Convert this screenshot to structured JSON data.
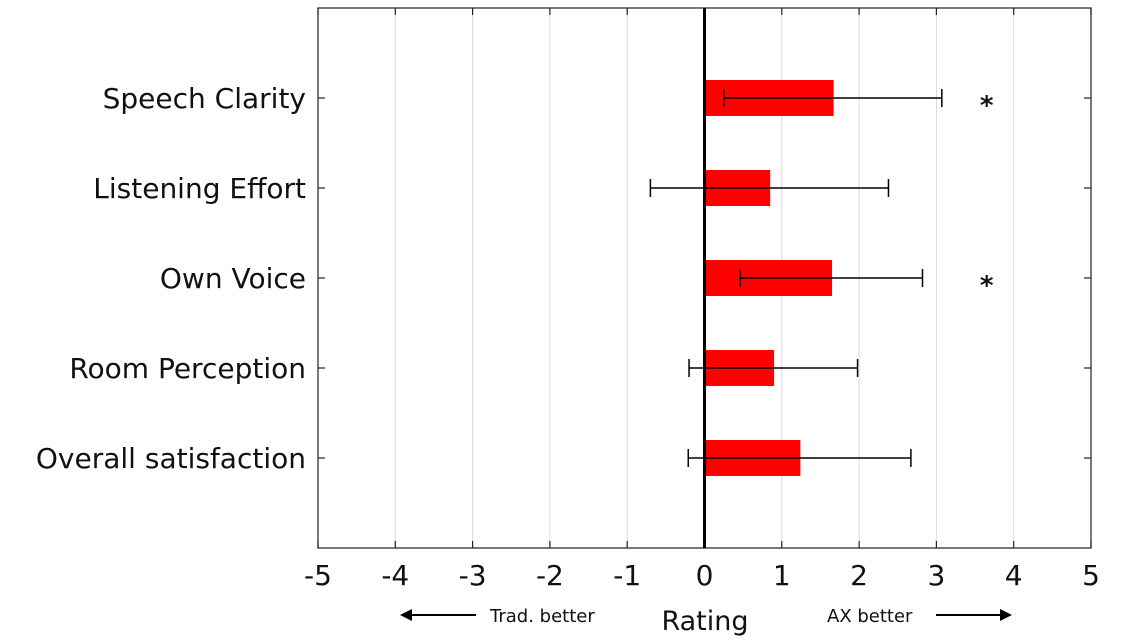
{
  "chart_data": {
    "type": "bar",
    "orientation": "horizontal",
    "categories": [
      "Speech Clarity",
      "Listening Effort",
      "Own Voice",
      "Room Perception",
      "Overall satisfaction"
    ],
    "values": [
      1.67,
      0.85,
      1.65,
      0.9,
      1.24
    ],
    "error_low": [
      0.25,
      -0.7,
      0.46,
      -0.2,
      -0.21
    ],
    "error_high": [
      3.07,
      2.38,
      2.82,
      1.98,
      2.67
    ],
    "significance": [
      "*",
      "",
      "*",
      "",
      ""
    ],
    "xlabel": "Rating",
    "xlim": [
      -5,
      5
    ],
    "xticks": [
      "-5",
      "-4",
      "-3",
      "-2",
      "-1",
      "0",
      "1",
      "2",
      "3",
      "4",
      "5"
    ],
    "grid": "vertical",
    "bar_color": "#ff0000",
    "direction_left": "Trad. better",
    "direction_right": "AX better"
  }
}
